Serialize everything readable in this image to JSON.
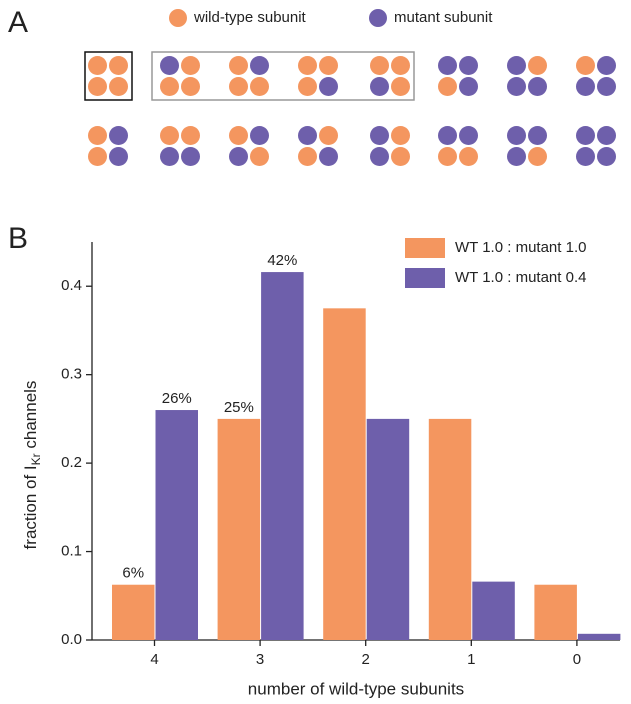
{
  "panel_a": {
    "label": "A",
    "legend": [
      {
        "label": "wild-type subunit",
        "color": "#f4965f"
      },
      {
        "label": "mutant subunit",
        "color": "#6e5fab"
      }
    ]
  },
  "chart_data": {
    "type": "bar",
    "panel_label": "B",
    "x_label": "number of wild-type subunits",
    "y_label": {
      "text": "fraction of I",
      "subscript": "Kr",
      "suffix": " channels"
    },
    "categories": [
      "4",
      "3",
      "2",
      "1",
      "0"
    ],
    "series": [
      {
        "name": "WT 1.0 : mutant 1.0",
        "color": "#f4965f",
        "values": [
          0.0625,
          0.25,
          0.375,
          0.25,
          0.0625
        ],
        "value_labels": [
          "6%",
          "25%",
          null,
          null,
          null
        ]
      },
      {
        "name": "WT 1.0 : mutant 0.4",
        "color": "#6e5fab",
        "values": [
          0.26,
          0.416,
          0.25,
          0.066,
          0.007
        ],
        "value_labels": [
          "26%",
          "42%",
          null,
          null,
          null
        ]
      }
    ],
    "ylim": [
      0,
      0.45
    ],
    "yticks": [
      {
        "value": 0,
        "label": "0.0"
      },
      0.1,
      0.2,
      0.3,
      0.4
    ],
    "legend": "upper right"
  }
}
